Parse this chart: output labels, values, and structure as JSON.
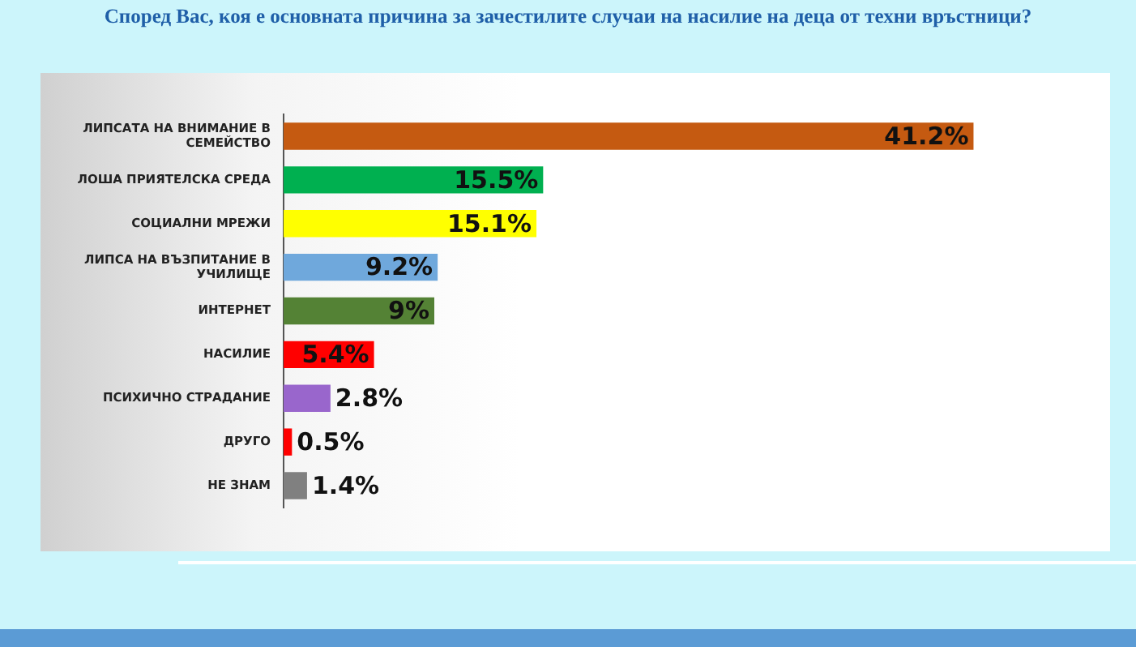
{
  "chart_data": {
    "type": "bar",
    "orientation": "horizontal",
    "title": "Според Вас, коя е основната причина за зачестилите случаи на насилие на деца от техни връстници?",
    "categories": [
      "ЛИПСАТА НА ВНИМАНИЕ В СЕМЕЙСТВО",
      "ЛОША ПРИЯТЕЛСКА СРЕДА",
      "СОЦИАЛНИ МРЕЖИ",
      "ЛИПСА НА ВЪЗПИТАНИЕ В УЧИЛИЩЕ",
      "ИНТЕРНЕТ",
      "НАСИЛИЕ",
      "ПСИХИЧНО СТРАДАНИЕ",
      "ДРУГО",
      "НЕ ЗНАМ"
    ],
    "values": [
      41.2,
      15.5,
      15.1,
      9.2,
      9,
      5.4,
      2.8,
      0.5,
      1.4
    ],
    "value_labels": [
      "41.2%",
      "15.5%",
      "15.1%",
      "9.2%",
      "9%",
      "5.4%",
      "2.8%",
      "0.5%",
      "1.4%"
    ],
    "colors": [
      "#c55a11",
      "#00b050",
      "#ffff00",
      "#6fa8dc",
      "#548235",
      "#ff0000",
      "#9966cc",
      "#ff0000",
      "#808080"
    ],
    "legend": false
  }
}
